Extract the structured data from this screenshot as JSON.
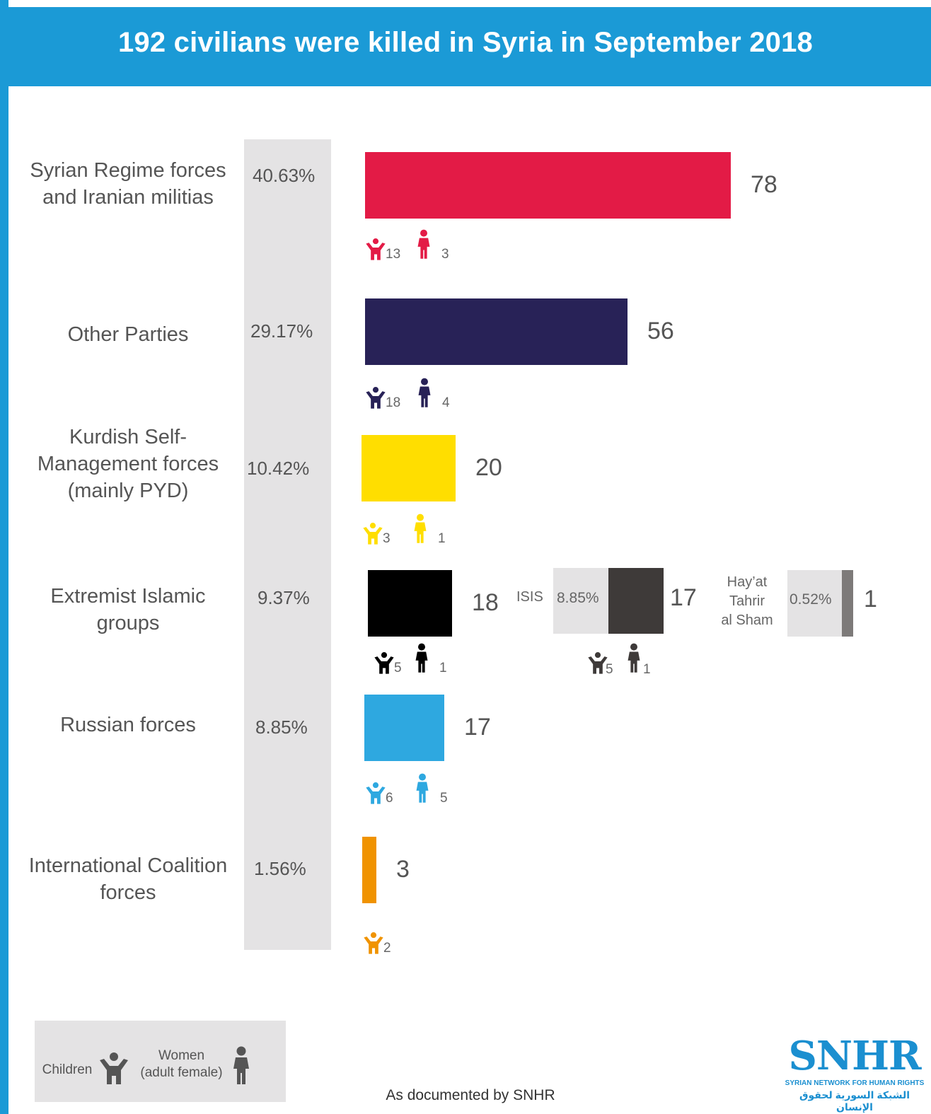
{
  "title": "192 civilians were killed in Syria in September 2018",
  "colors": {
    "header": "#1b9ad6",
    "band": "#e4e3e4",
    "regime": "#e31b46",
    "other": "#282257",
    "kurdish": "#ffde00",
    "extremist": "#000000",
    "isis": "#3e3a39",
    "hts": "#7d7a79",
    "russian": "#2ea8e0",
    "coalition": "#f09300"
  },
  "chart_data": {
    "type": "bar",
    "orientation": "horizontal",
    "title": "192 civilians were killed in Syria in September 2018",
    "categories": [
      "Syrian Regime forces and Iranian militias",
      "Other Parties",
      "Kurdish Self-Management forces (mainly PYD)",
      "Extremist Islamic groups",
      "Russian forces",
      "International Coalition forces"
    ],
    "values": [
      78,
      56,
      20,
      18,
      17,
      3
    ],
    "percentages": [
      "40.63%",
      "29.17%",
      "10.42%",
      "9.37%",
      "8.85%",
      "1.56%"
    ],
    "children": [
      13,
      18,
      3,
      5,
      6,
      2
    ],
    "women": [
      3,
      4,
      1,
      1,
      5,
      null
    ],
    "sub_groups": [
      {
        "name": "ISIS",
        "value": 17,
        "percentage": "8.85%",
        "children": 5,
        "women": 1
      },
      {
        "name": "Hay'at Tahrir al Sham",
        "value": 1,
        "percentage": "0.52%"
      }
    ]
  },
  "rows": [
    {
      "label_lines": [
        "Syrian Regime forces",
        "and Iranian militias"
      ],
      "pct": "40.63%",
      "value": "78",
      "children": "13",
      "women": "3"
    },
    {
      "label_lines": [
        "Other Parties"
      ],
      "pct": "29.17%",
      "value": "56",
      "children": "18",
      "women": "4"
    },
    {
      "label_lines": [
        "Kurdish Self-",
        "Management forces",
        "(mainly PYD)"
      ],
      "pct": "10.42%",
      "value": "20",
      "children": "3",
      "women": "1"
    },
    {
      "label_lines": [
        "Extremist Islamic",
        "groups"
      ],
      "pct": "9.37%",
      "value": "18",
      "children": "5",
      "women": "1"
    },
    {
      "label_lines": [
        "Russian forces"
      ],
      "pct": "8.85%",
      "value": "17",
      "children": "6",
      "women": "5"
    },
    {
      "label_lines": [
        "International Coalition",
        "forces"
      ],
      "pct": "1.56%",
      "value": "3",
      "children": "2",
      "women": null
    }
  ],
  "isis": {
    "name": "ISIS",
    "pct": "8.85%",
    "value": "17",
    "children": "5",
    "women": "1"
  },
  "hts": {
    "name_lines": [
      "Hay’at",
      "Tahrir",
      "al Sham"
    ],
    "pct": "0.52%",
    "value": "1"
  },
  "legend": {
    "children_label": "Children",
    "women_lines": [
      "Women",
      "(adult female)"
    ],
    "child_icon": "child-icon",
    "woman_icon": "woman-icon"
  },
  "footer": "As documented by SNHR",
  "logo": {
    "main": "SNHR",
    "sub": "SYRIAN NETWORK FOR HUMAN RIGHTS",
    "arabic": "الشبكة السورية لحقوق الإنسان"
  }
}
